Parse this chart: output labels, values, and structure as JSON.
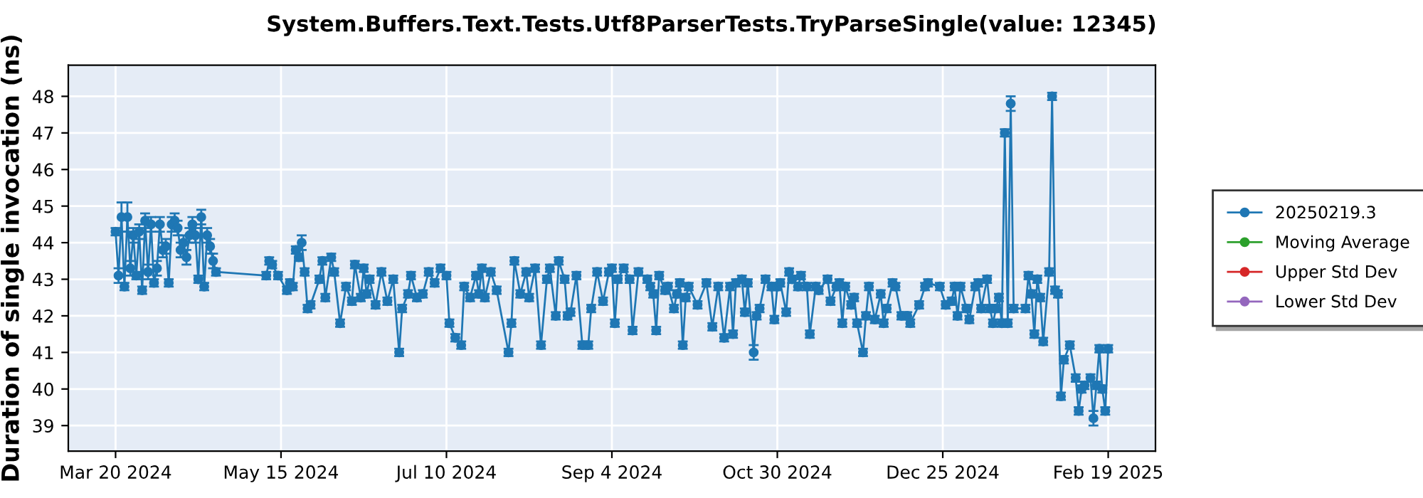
{
  "chart_data": {
    "type": "line",
    "title": "System.Buffers.Text.Tests.Utf8ParserTests.TryParseSingle(value: 12345)",
    "ylabel": "Duration of single invocation (ns)",
    "xlim": [
      "2024-03-04",
      "2025-03-07"
    ],
    "xticks": [
      {
        "value": "2024-03-20",
        "label": "Mar 20 2024"
      },
      {
        "value": "2024-05-15",
        "label": "May 15 2024"
      },
      {
        "value": "2024-07-10",
        "label": "Jul 10 2024"
      },
      {
        "value": "2024-09-04",
        "label": "Sep 4 2024"
      },
      {
        "value": "2024-10-30",
        "label": "Oct 30 2024"
      },
      {
        "value": "2024-12-25",
        "label": "Dec 25 2024"
      },
      {
        "value": "2025-02-19",
        "label": "Feb 19 2025"
      }
    ],
    "ylim": [
      38.3,
      48.85
    ],
    "yticks": [
      39,
      40,
      41,
      42,
      43,
      44,
      45,
      46,
      47,
      48
    ],
    "grid": true,
    "legend": "right",
    "marker": "circle",
    "line_style": "solid",
    "series": [
      {
        "name": "20250219.3",
        "color": "#1f77b4",
        "x": [
          "2024-03-20",
          "2024-03-21",
          "2024-03-22",
          "2024-03-23",
          "2024-03-24",
          "2024-03-25",
          "2024-03-26",
          "2024-03-27",
          "2024-03-28",
          "2024-03-29",
          "2024-03-30",
          "2024-03-31",
          "2024-04-01",
          "2024-04-02",
          "2024-04-03",
          "2024-04-04",
          "2024-04-05",
          "2024-04-06",
          "2024-04-07",
          "2024-04-08",
          "2024-04-09",
          "2024-04-10",
          "2024-04-11",
          "2024-04-12",
          "2024-04-13",
          "2024-04-14",
          "2024-04-15",
          "2024-04-16",
          "2024-04-17",
          "2024-04-18",
          "2024-04-19",
          "2024-04-20",
          "2024-04-21",
          "2024-04-22",
          "2024-04-23",
          "2024-05-10",
          "2024-05-11",
          "2024-05-12",
          "2024-05-14",
          "2024-05-17",
          "2024-05-18",
          "2024-05-19",
          "2024-05-20",
          "2024-05-21",
          "2024-05-22",
          "2024-05-23",
          "2024-05-24",
          "2024-05-25",
          "2024-05-28",
          "2024-05-29",
          "2024-05-30",
          "2024-06-01",
          "2024-06-02",
          "2024-06-04",
          "2024-06-06",
          "2024-06-08",
          "2024-06-09",
          "2024-06-11",
          "2024-06-12",
          "2024-06-13",
          "2024-06-14",
          "2024-06-16",
          "2024-06-18",
          "2024-06-20",
          "2024-06-22",
          "2024-06-24",
          "2024-06-25",
          "2024-06-27",
          "2024-06-28",
          "2024-06-30",
          "2024-07-02",
          "2024-07-04",
          "2024-07-06",
          "2024-07-08",
          "2024-07-10",
          "2024-07-11",
          "2024-07-13",
          "2024-07-15",
          "2024-07-16",
          "2024-07-18",
          "2024-07-20",
          "2024-07-21",
          "2024-07-22",
          "2024-07-23",
          "2024-07-25",
          "2024-07-27",
          "2024-07-31",
          "2024-08-01",
          "2024-08-02",
          "2024-08-04",
          "2024-08-06",
          "2024-08-07",
          "2024-08-09",
          "2024-08-11",
          "2024-08-13",
          "2024-08-14",
          "2024-08-16",
          "2024-08-17",
          "2024-08-19",
          "2024-08-20",
          "2024-08-21",
          "2024-08-23",
          "2024-08-25",
          "2024-08-27",
          "2024-08-28",
          "2024-08-30",
          "2024-09-01",
          "2024-09-03",
          "2024-09-04",
          "2024-09-05",
          "2024-09-06",
          "2024-09-08",
          "2024-09-10",
          "2024-09-11",
          "2024-09-13",
          "2024-09-16",
          "2024-09-17",
          "2024-09-18",
          "2024-09-19",
          "2024-09-20",
          "2024-09-22",
          "2024-09-23",
          "2024-09-25",
          "2024-09-26",
          "2024-09-27",
          "2024-09-28",
          "2024-09-29",
          "2024-09-30",
          "2024-10-03",
          "2024-10-06",
          "2024-10-08",
          "2024-10-10",
          "2024-10-12",
          "2024-10-14",
          "2024-10-15",
          "2024-10-16",
          "2024-10-18",
          "2024-10-19",
          "2024-10-20",
          "2024-10-22",
          "2024-10-23",
          "2024-10-24",
          "2024-10-26",
          "2024-10-28",
          "2024-10-29",
          "2024-10-30",
          "2024-10-31",
          "2024-11-02",
          "2024-11-03",
          "2024-11-04",
          "2024-11-06",
          "2024-11-07",
          "2024-11-09",
          "2024-11-10",
          "2024-11-12",
          "2024-11-13",
          "2024-11-16",
          "2024-11-17",
          "2024-11-19",
          "2024-11-20",
          "2024-11-21",
          "2024-11-22",
          "2024-11-24",
          "2024-11-25",
          "2024-11-26",
          "2024-11-28",
          "2024-11-29",
          "2024-11-30",
          "2024-12-02",
          "2024-12-04",
          "2024-12-05",
          "2024-12-06",
          "2024-12-08",
          "2024-12-09",
          "2024-12-11",
          "2024-12-13",
          "2024-12-14",
          "2024-12-17",
          "2024-12-19",
          "2024-12-20",
          "2024-12-24",
          "2024-12-26",
          "2024-12-28",
          "2024-12-29",
          "2024-12-30",
          "2024-12-31",
          "2025-01-02",
          "2025-01-03",
          "2025-01-05",
          "2025-01-06",
          "2025-01-07",
          "2025-01-09",
          "2025-01-10",
          "2025-01-11",
          "2025-01-12",
          "2025-01-13",
          "2025-01-14",
          "2025-01-15",
          "2025-01-16",
          "2025-01-17",
          "2025-01-18",
          "2025-01-22",
          "2025-01-23",
          "2025-01-24",
          "2025-01-25",
          "2025-01-26",
          "2025-01-27",
          "2025-01-28",
          "2025-01-30",
          "2025-01-31",
          "2025-02-01",
          "2025-02-02",
          "2025-02-03",
          "2025-02-04",
          "2025-02-06",
          "2025-02-08",
          "2025-02-09",
          "2025-02-10",
          "2025-02-11",
          "2025-02-13",
          "2025-02-14",
          "2025-02-15",
          "2025-02-16",
          "2025-02-17",
          "2025-02-18",
          "2025-02-19"
        ],
        "values": [
          44.3,
          43.1,
          44.7,
          42.8,
          44.7,
          43.3,
          44.2,
          43.1,
          44.3,
          42.7,
          44.6,
          43.2,
          44.5,
          42.9,
          43.3,
          44.5,
          43.8,
          43.9,
          42.9,
          44.5,
          44.6,
          44.4,
          43.8,
          44.0,
          43.6,
          44.2,
          44.5,
          44.2,
          43.0,
          44.7,
          42.8,
          44.2,
          43.9,
          43.5,
          43.2,
          43.1,
          43.5,
          43.4,
          43.1,
          42.7,
          42.9,
          42.8,
          43.8,
          43.6,
          44.0,
          43.2,
          42.2,
          42.3,
          43.0,
          43.5,
          42.5,
          43.6,
          43.2,
          41.8,
          42.8,
          42.4,
          43.4,
          42.5,
          43.3,
          42.6,
          43.0,
          42.3,
          43.2,
          42.4,
          43.0,
          41.0,
          42.2,
          42.6,
          43.1,
          42.5,
          42.6,
          43.2,
          42.9,
          43.3,
          43.1,
          41.8,
          41.4,
          41.2,
          42.8,
          42.5,
          43.1,
          42.6,
          43.3,
          42.5,
          43.2,
          42.7,
          41.0,
          41.8,
          43.5,
          42.6,
          43.2,
          42.5,
          43.3,
          41.2,
          43.0,
          43.3,
          42.0,
          43.5,
          43.0,
          42.0,
          42.1,
          43.1,
          41.2,
          41.2,
          42.2,
          43.2,
          42.4,
          43.2,
          43.3,
          41.8,
          43.0,
          43.3,
          43.0,
          41.6,
          43.2,
          43.0,
          42.8,
          42.6,
          41.6,
          43.1,
          42.7,
          42.8,
          42.2,
          42.6,
          42.9,
          41.2,
          42.5,
          42.8,
          42.3,
          42.9,
          41.7,
          42.8,
          41.4,
          42.8,
          41.5,
          42.9,
          43.0,
          42.1,
          42.9,
          41.0,
          42.0,
          42.2,
          43.0,
          42.8,
          41.9,
          42.8,
          42.9,
          42.1,
          43.2,
          43.0,
          42.8,
          43.1,
          42.8,
          41.5,
          42.8,
          42.7,
          43.0,
          42.4,
          42.8,
          42.9,
          41.8,
          42.8,
          42.3,
          42.5,
          41.8,
          41.0,
          42.0,
          42.8,
          41.9,
          42.6,
          41.8,
          42.2,
          42.9,
          42.8,
          42.0,
          42.0,
          41.8,
          42.3,
          42.8,
          42.9,
          42.8,
          42.3,
          42.4,
          42.8,
          42.0,
          42.8,
          42.2,
          41.9,
          42.8,
          42.9,
          42.2,
          43.0,
          42.2,
          41.8,
          42.2,
          42.5,
          41.8,
          47.0,
          41.8,
          47.8,
          42.2,
          42.2,
          43.1,
          42.6,
          41.5,
          43.0,
          42.5,
          41.3,
          43.2,
          48.0,
          42.7,
          42.6,
          39.8,
          40.8,
          41.2,
          40.3,
          39.4,
          40.0,
          40.1,
          40.3,
          39.2,
          40.1,
          41.1,
          40.0,
          39.4,
          41.1
        ],
        "errors": [
          0.1,
          0.2,
          0.4,
          0.1,
          0.4,
          0.2,
          0.2,
          0.1,
          0.2,
          0.1,
          0.2,
          0.2,
          0.2,
          0.1,
          0.2,
          0.2,
          0.2,
          0.2,
          0.1,
          0.2,
          0.2,
          0.2,
          0.2,
          0.2,
          0.2,
          0.2,
          0.2,
          0.2,
          0.1,
          0.2,
          0.1,
          0.2,
          0.2,
          0.2,
          0.1,
          0.1,
          0.1,
          0.1,
          0.1,
          0.1,
          0.1,
          0.1,
          0.1,
          0.1,
          0.2,
          0.1,
          0.1,
          0.1,
          0.1,
          0.1,
          0.1,
          0.1,
          0.1,
          0.1,
          0.1,
          0.1,
          0.1,
          0.1,
          0.1,
          0.1,
          0.1,
          0.1,
          0.1,
          0.1,
          0.1,
          0.1,
          0.1,
          0.1,
          0.1,
          0.1,
          0.1,
          0.1,
          0.1,
          0.1,
          0.1,
          0.1,
          0.1,
          0.1,
          0.1,
          0.1,
          0.1,
          0.1,
          0.1,
          0.1,
          0.1,
          0.1,
          0.1,
          0.1,
          0.1,
          0.1,
          0.1,
          0.1,
          0.1,
          0.1,
          0.1,
          0.1,
          0.1,
          0.1,
          0.1,
          0.1,
          0.1,
          0.1,
          0.1,
          0.1,
          0.1,
          0.1,
          0.1,
          0.1,
          0.1,
          0.1,
          0.1,
          0.1,
          0.1,
          0.1,
          0.1,
          0.1,
          0.1,
          0.1,
          0.1,
          0.1,
          0.1,
          0.1,
          0.1,
          0.1,
          0.1,
          0.1,
          0.1,
          0.1,
          0.1,
          0.1,
          0.1,
          0.1,
          0.1,
          0.1,
          0.1,
          0.1,
          0.1,
          0.1,
          0.1,
          0.2,
          0.1,
          0.1,
          0.1,
          0.1,
          0.1,
          0.1,
          0.1,
          0.1,
          0.1,
          0.1,
          0.1,
          0.1,
          0.1,
          0.1,
          0.1,
          0.1,
          0.1,
          0.1,
          0.1,
          0.1,
          0.1,
          0.1,
          0.1,
          0.1,
          0.1,
          0.1,
          0.1,
          0.1,
          0.1,
          0.1,
          0.1,
          0.1,
          0.1,
          0.1,
          0.1,
          0.1,
          0.1,
          0.1,
          0.1,
          0.1,
          0.1,
          0.1,
          0.1,
          0.1,
          0.1,
          0.1,
          0.1,
          0.1,
          0.1,
          0.1,
          0.1,
          0.1,
          0.1,
          0.1,
          0.1,
          0.1,
          0.1,
          0.1,
          0.1,
          0.2,
          0.1,
          0.1,
          0.1,
          0.1,
          0.1,
          0.1,
          0.1,
          0.1,
          0.1,
          0.1,
          0.1,
          0.1,
          0.1,
          0.1,
          0.1,
          0.1,
          0.1,
          0.1,
          0.1,
          0.1,
          0.2,
          0.1,
          0.1,
          0.1,
          0.1,
          0.1
        ]
      },
      {
        "name": "Moving Average",
        "color": "#2ca02c"
      },
      {
        "name": "Upper Std Dev",
        "color": "#d62728"
      },
      {
        "name": "Lower Std Dev",
        "color": "#9467bd"
      }
    ]
  }
}
